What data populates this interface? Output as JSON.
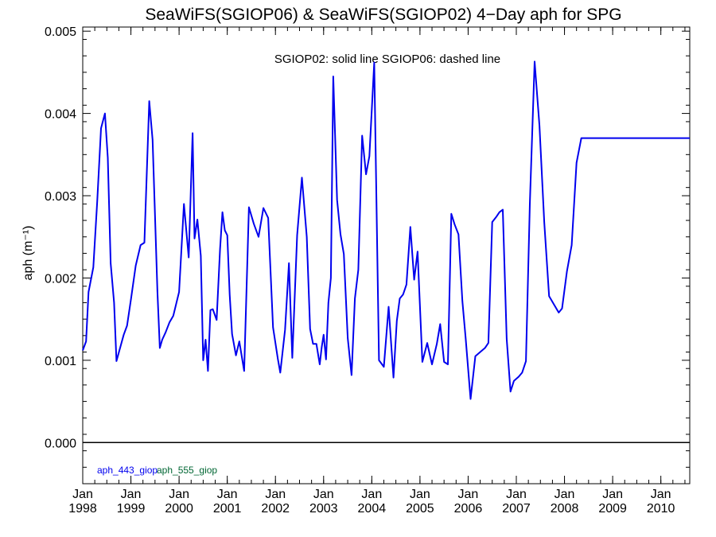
{
  "chart_data": {
    "type": "line",
    "title": "SeaWiFS(SGIOP06) & SeaWiFS(SGIOP02) 4−Day aph for SPG",
    "annotation": "SGIOP02: solid line   SGIOP06: dashed line",
    "ylabel": "aph (m⁻¹)",
    "xlim": [
      1998.0,
      2010.6
    ],
    "ylim": [
      -0.0005,
      0.00505
    ],
    "y_ticks": [
      0.0,
      0.001,
      0.002,
      0.003,
      0.004,
      0.005
    ],
    "y_tick_labels": [
      "0.000",
      "0.001",
      "0.002",
      "0.003",
      "0.004",
      "0.005"
    ],
    "x_ticks": [
      1998,
      1999,
      2000,
      2001,
      2002,
      2003,
      2004,
      2005,
      2006,
      2007,
      2008,
      2009,
      2010
    ],
    "x_tick_months": [
      "Jan",
      "Jan",
      "Jan",
      "Jan",
      "Jan",
      "Jan",
      "Jan",
      "Jan",
      "Jan",
      "Jan",
      "Jan",
      "Jan",
      "Jan"
    ],
    "x_tick_years": [
      "1998",
      "1999",
      "2000",
      "2001",
      "2002",
      "2003",
      "2004",
      "2005",
      "2006",
      "2007",
      "2008",
      "2009",
      "2010"
    ],
    "zero_line": true,
    "legend": [
      {
        "label": "aph_443_giop",
        "color": "#0000ee"
      },
      {
        "label": "aph_555_giop",
        "color": "#006633"
      }
    ],
    "series": [
      {
        "name": "aph_443_giop",
        "model": "SGIOP02",
        "style": "solid",
        "color": "#0000ee",
        "x": [
          1998.0,
          1998.07,
          1998.12,
          1998.22,
          1998.3,
          1998.38,
          1998.46,
          1998.52,
          1998.58,
          1998.65,
          1998.7,
          1998.85,
          1998.92,
          1999.0,
          1999.1,
          1999.2,
          1999.28,
          1999.38,
          1999.45,
          1999.55,
          1999.6,
          1999.65,
          1999.72,
          1999.8,
          1999.88,
          2000.0,
          2000.1,
          2000.2,
          2000.28,
          2000.32,
          2000.38,
          2000.45,
          2000.5,
          2000.55,
          2000.6,
          2000.65,
          2000.7,
          2000.78,
          2000.85,
          2000.9,
          2000.95,
          2001.0,
          2001.05,
          2001.1,
          2001.18,
          2001.25,
          2001.35,
          2001.45,
          2001.55,
          2001.65,
          2001.75,
          2001.85,
          2001.95,
          2002.05,
          2002.1,
          2002.2,
          2002.28,
          2002.35,
          2002.45,
          2002.55,
          2002.65,
          2002.72,
          2002.78,
          2002.85,
          2002.92,
          2002.96,
          2003.0,
          2003.05,
          2003.1,
          2003.15,
          2003.2,
          2003.28,
          2003.35,
          2003.42,
          2003.5,
          2003.58,
          2003.65,
          2003.72,
          2003.8,
          2003.88,
          2003.95,
          2004.05,
          2004.15,
          2004.25,
          2004.35,
          2004.45,
          2004.52,
          2004.58,
          2004.65,
          2004.72,
          2004.8,
          2004.88,
          2004.95,
          2005.05,
          2005.15,
          2005.25,
          2005.35,
          2005.42,
          2005.5,
          2005.58,
          2005.65,
          2005.72,
          2005.8,
          2005.88,
          2005.95,
          2006.05,
          2006.15,
          2006.25,
          2006.35,
          2006.42,
          2006.5,
          2006.58,
          2006.65,
          2006.72,
          2006.8,
          2006.88,
          2006.95,
          2007.05,
          2007.12,
          2007.2,
          2007.28,
          2007.38,
          2007.48,
          2007.58,
          2007.68,
          2007.78,
          2007.88,
          2007.95,
          2008.05,
          2008.15,
          2008.25,
          2008.35,
          2008.45,
          2008.55,
          2008.65,
          2008.72,
          2008.8,
          2008.88,
          2008.95,
          2009.05,
          2009.15,
          2009.25,
          2009.35,
          2009.45,
          2009.55,
          2009.62,
          2009.7,
          2009.78,
          2009.85,
          2009.92,
          2010.0,
          2010.05,
          2010.12,
          2010.2,
          2010.28,
          2010.35,
          2010.42,
          2010.5,
          2010.6
        ],
        "y": [
          0.00112,
          0.00123,
          0.00183,
          0.00213,
          0.00293,
          0.00382,
          0.004,
          0.00346,
          0.00218,
          0.0017,
          0.00099,
          0.00131,
          0.00142,
          0.00174,
          0.00215,
          0.0024,
          0.00243,
          0.00415,
          0.00368,
          0.00183,
          0.00115,
          0.00125,
          0.00134,
          0.00146,
          0.00154,
          0.00183,
          0.0029,
          0.00225,
          0.00376,
          0.00248,
          0.00271,
          0.00227,
          0.001,
          0.00125,
          0.00087,
          0.00161,
          0.00162,
          0.00149,
          0.00235,
          0.0028,
          0.00258,
          0.00252,
          0.0018,
          0.00132,
          0.00106,
          0.00123,
          0.00087,
          0.00286,
          0.00266,
          0.0025,
          0.00285,
          0.00273,
          0.0014,
          0.00102,
          0.00085,
          0.00137,
          0.00218,
          0.00103,
          0.00252,
          0.00322,
          0.0025,
          0.00138,
          0.0012,
          0.0012,
          0.00095,
          0.00116,
          0.00131,
          0.00101,
          0.0017,
          0.002,
          0.00445,
          0.00295,
          0.00253,
          0.00229,
          0.00127,
          0.00082,
          0.00175,
          0.0021,
          0.00373,
          0.00326,
          0.00348,
          0.00462,
          0.001,
          0.00092,
          0.00165,
          0.00079,
          0.00148,
          0.00175,
          0.0018,
          0.00192,
          0.00262,
          0.00198,
          0.00232,
          0.00098,
          0.00121,
          0.00095,
          0.0012,
          0.00144,
          0.00098,
          0.00095,
          0.00278,
          0.00265,
          0.00253,
          0.00172,
          0.00126,
          0.00053,
          0.00105,
          0.0011,
          0.00115,
          0.00121,
          0.00268,
          0.00274,
          0.0028,
          0.00283,
          0.00126,
          0.00062,
          0.00075,
          0.0008,
          0.00085,
          0.00099,
          0.0029,
          0.00463,
          0.00385,
          0.00268,
          0.00178,
          0.00168,
          0.00158,
          0.00163,
          0.00208,
          0.0024,
          0.0034,
          0.0037,
          0.0037,
          0.0037,
          0.0037,
          0.0037,
          0.0037,
          0.0037,
          0.0037,
          0.0037,
          0.0037,
          0.0037,
          0.0037,
          0.0037,
          0.0037,
          0.0037,
          0.0037,
          0.0037,
          0.0037,
          0.0037,
          0.0037,
          0.0037,
          0.0037,
          0.0037,
          0.0037,
          0.0037,
          0.0037,
          0.0037,
          0.0037
        ]
      }
    ]
  }
}
